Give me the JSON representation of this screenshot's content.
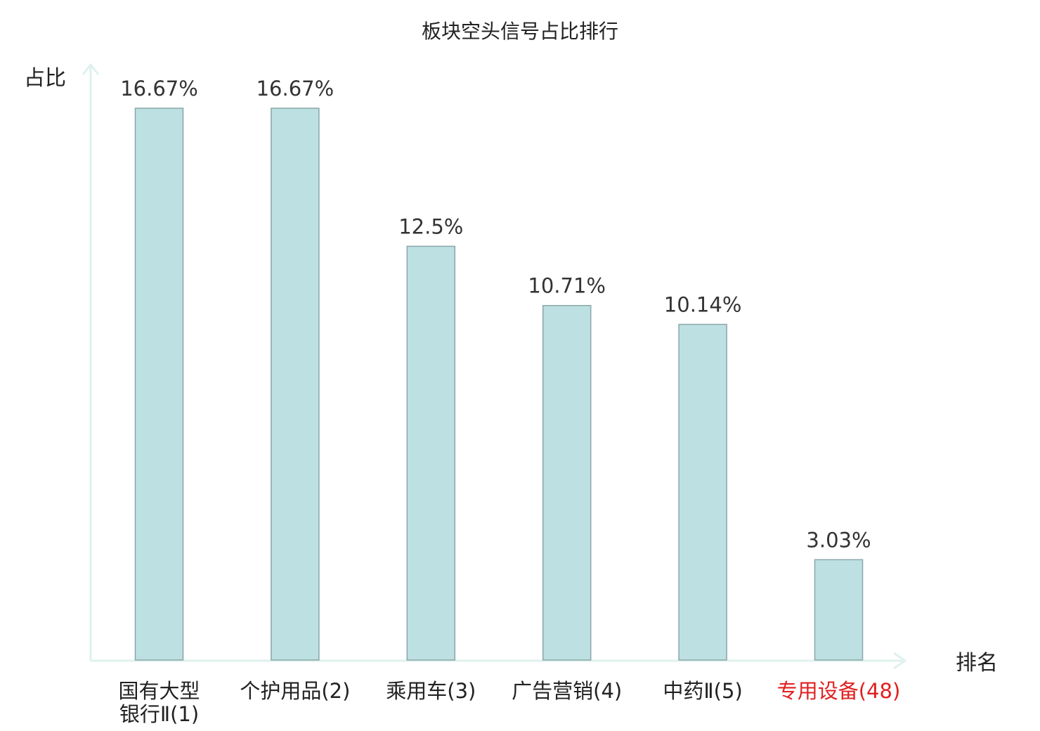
{
  "chart_data": {
    "type": "bar",
    "title": "板块空头信号占比排行",
    "ylabel": "占比",
    "xlabel": "排名",
    "categories": [
      [
        "国有大型",
        "银行Ⅱ(1)"
      ],
      [
        "个护用品(2)"
      ],
      [
        "乘用车(3)"
      ],
      [
        "广告营销(4)"
      ],
      [
        "中药Ⅱ(5)"
      ],
      [
        "专用设备(48)"
      ]
    ],
    "values": [
      16.67,
      16.67,
      12.5,
      10.71,
      10.14,
      3.03
    ],
    "value_labels": [
      "16.67%",
      "16.67%",
      "12.5%",
      "10.71%",
      "10.14%",
      "3.03%"
    ],
    "highlight": [
      false,
      false,
      false,
      false,
      false,
      true
    ],
    "ylim": [
      0,
      17.5
    ],
    "grid": false,
    "colors": {
      "bar_fill": "#bde1e3",
      "bar_stroke": "#8aa6a8",
      "axis": "#dff1ee",
      "highlight_label": "#e02020",
      "text": "#222222"
    }
  }
}
